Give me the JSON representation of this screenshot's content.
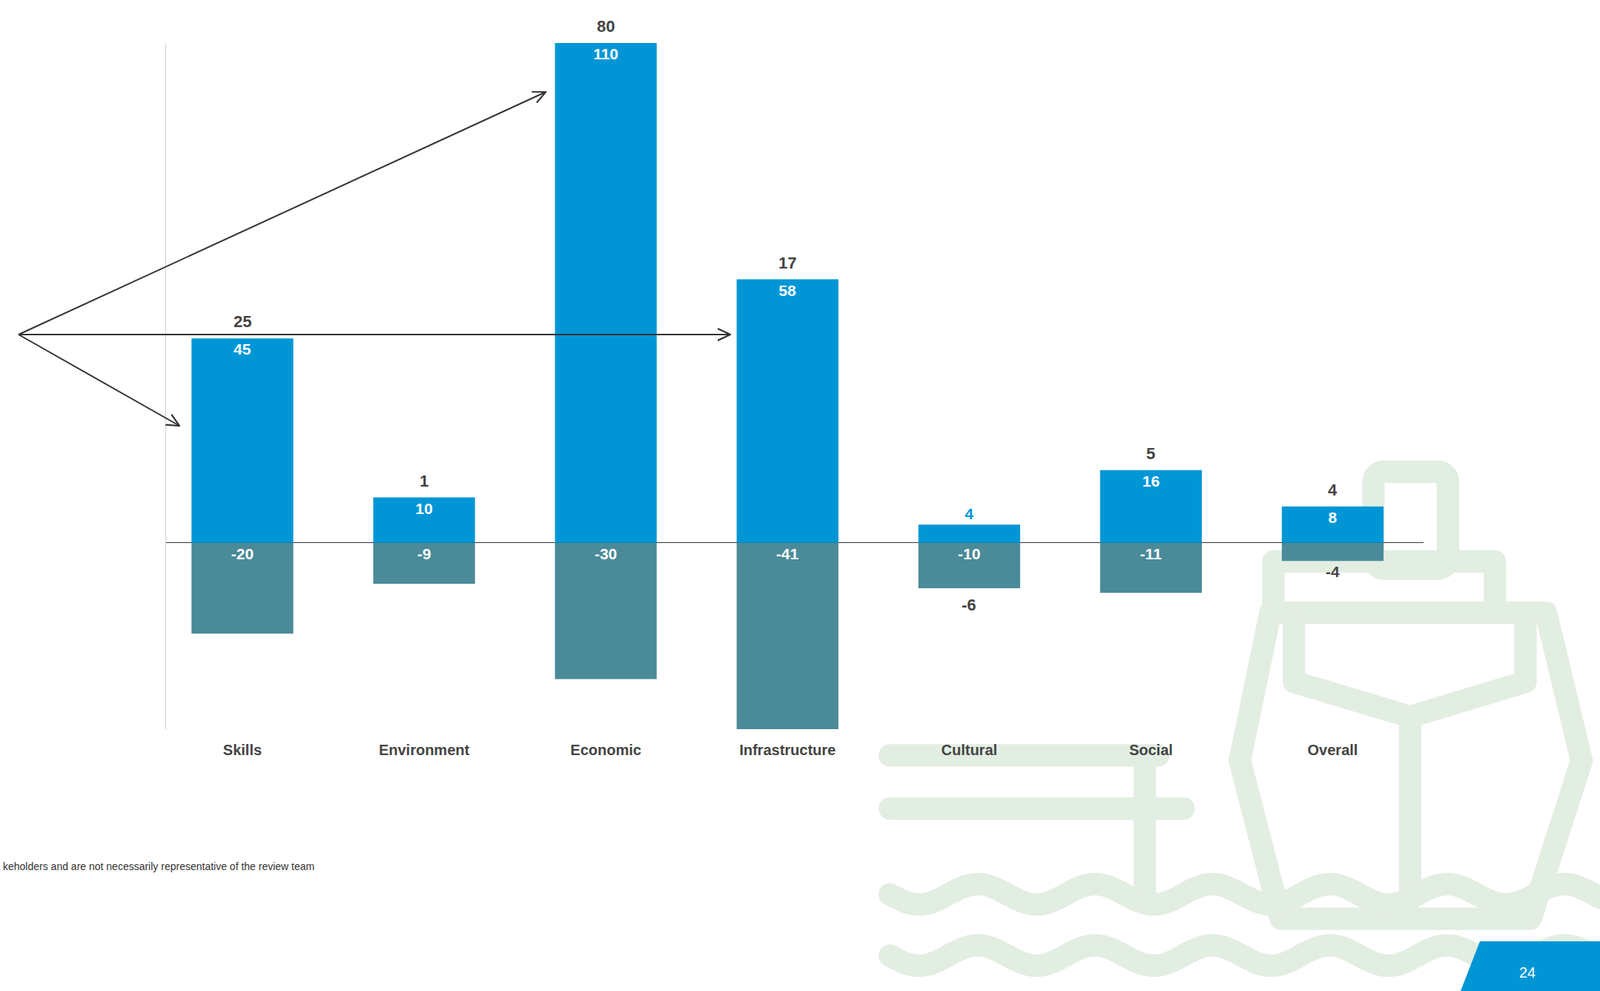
{
  "chart_data": {
    "type": "bar",
    "categories": [
      "Skills",
      "Environment",
      "Economic",
      "Infrastructure",
      "Cultural",
      "Social",
      "Overall"
    ],
    "series": [
      {
        "color": "#0096d6",
        "values": [
          45,
          10,
          110,
          58,
          4,
          16,
          8
        ]
      },
      {
        "color": "#4a8a99",
        "values": [
          -20,
          -9,
          -30,
          -41,
          -10,
          -11,
          -4
        ]
      }
    ],
    "totals": [
      25,
      1,
      80,
      17,
      -6,
      5,
      4
    ],
    "stacked": true,
    "data_labels": true,
    "tick_labels": "x",
    "grid": false,
    "ylim": [
      -41,
      110
    ],
    "yticks": [
      0
    ]
  },
  "footnote": "keholders and are not necessarily representative of the review team",
  "page_number": 24
}
